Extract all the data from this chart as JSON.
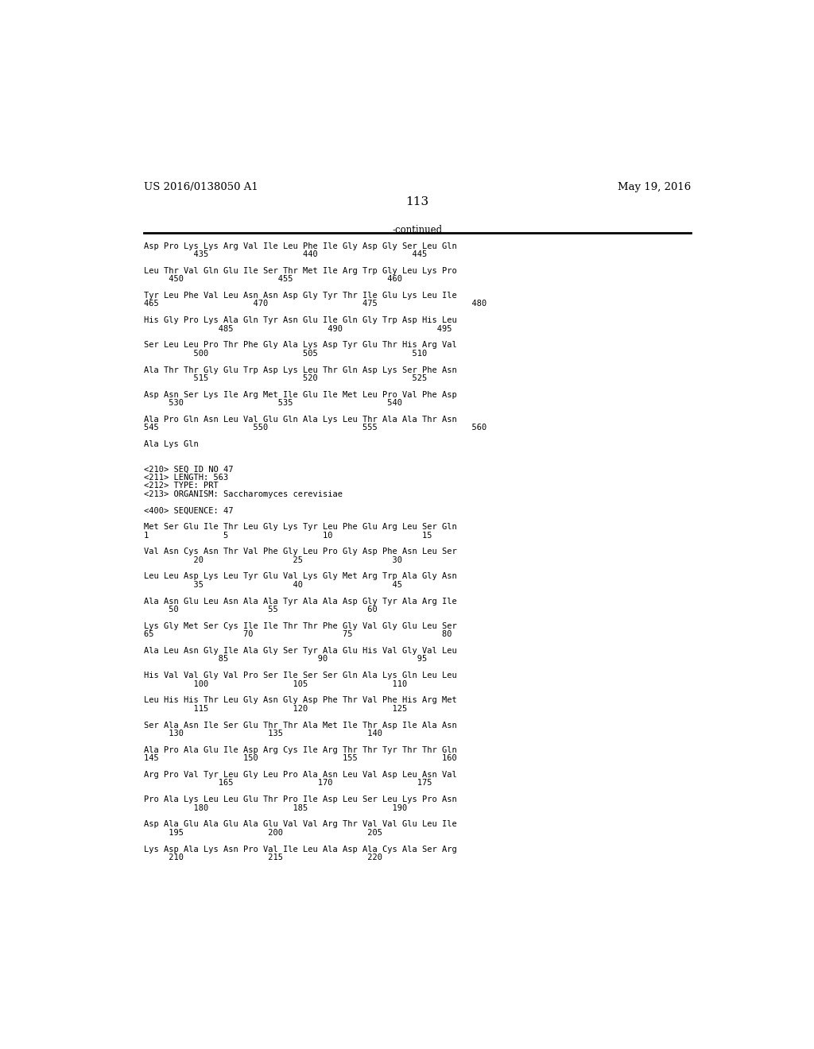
{
  "header_left": "US 2016/0138050 A1",
  "header_right": "May 19, 2016",
  "page_number": "113",
  "continued_label": "-continued",
  "background_color": "#ffffff",
  "text_color": "#000000",
  "font_size": 7.5,
  "lines": [
    "Asp Pro Lys Lys Arg Val Ile Leu Phe Ile Gly Asp Gly Ser Leu Gln",
    "          435                   440                   445",
    "",
    "Leu Thr Val Gln Glu Ile Ser Thr Met Ile Arg Trp Gly Leu Lys Pro",
    "     450                   455                   460",
    "",
    "Tyr Leu Phe Val Leu Asn Asn Asp Gly Tyr Thr Ile Glu Lys Leu Ile",
    "465                   470                   475                   480",
    "",
    "His Gly Pro Lys Ala Gln Tyr Asn Glu Ile Gln Gly Trp Asp His Leu",
    "               485                   490                   495",
    "",
    "Ser Leu Leu Pro Thr Phe Gly Ala Lys Asp Tyr Glu Thr His Arg Val",
    "          500                   505                   510",
    "",
    "Ala Thr Thr Gly Glu Trp Asp Lys Leu Thr Gln Asp Lys Ser Phe Asn",
    "          515                   520                   525",
    "",
    "Asp Asn Ser Lys Ile Arg Met Ile Glu Ile Met Leu Pro Val Phe Asp",
    "     530                   535                   540",
    "",
    "Ala Pro Gln Asn Leu Val Glu Gln Ala Lys Leu Thr Ala Ala Thr Asn",
    "545                   550                   555                   560",
    "",
    "Ala Lys Gln",
    "",
    "",
    "<210> SEQ ID NO 47",
    "<211> LENGTH: 563",
    "<212> TYPE: PRT",
    "<213> ORGANISM: Saccharomyces cerevisiae",
    "",
    "<400> SEQUENCE: 47",
    "",
    "Met Ser Glu Ile Thr Leu Gly Lys Tyr Leu Phe Glu Arg Leu Ser Gln",
    "1               5                   10                  15",
    "",
    "Val Asn Cys Asn Thr Val Phe Gly Leu Pro Gly Asp Phe Asn Leu Ser",
    "          20                  25                  30",
    "",
    "Leu Leu Asp Lys Leu Tyr Glu Val Lys Gly Met Arg Trp Ala Gly Asn",
    "          35                  40                  45",
    "",
    "Ala Asn Glu Leu Asn Ala Ala Tyr Ala Ala Asp Gly Tyr Ala Arg Ile",
    "     50                  55                  60",
    "",
    "Lys Gly Met Ser Cys Ile Ile Thr Thr Phe Gly Val Gly Glu Leu Ser",
    "65                  70                  75                  80",
    "",
    "Ala Leu Asn Gly Ile Ala Gly Ser Tyr Ala Glu His Val Gly Val Leu",
    "               85                  90                  95",
    "",
    "His Val Val Gly Val Pro Ser Ile Ser Ser Gln Ala Lys Gln Leu Leu",
    "          100                 105                 110",
    "",
    "Leu His His Thr Leu Gly Asn Gly Asp Phe Thr Val Phe His Arg Met",
    "          115                 120                 125",
    "",
    "Ser Ala Asn Ile Ser Glu Thr Thr Ala Met Ile Thr Asp Ile Ala Asn",
    "     130                 135                 140",
    "",
    "Ala Pro Ala Glu Ile Asp Arg Cys Ile Arg Thr Thr Tyr Thr Thr Gln",
    "145                 150                 155                 160",
    "",
    "Arg Pro Val Tyr Leu Gly Leu Pro Ala Asn Leu Val Asp Leu Asn Val",
    "               165                 170                 175",
    "",
    "Pro Ala Lys Leu Leu Glu Thr Pro Ile Asp Leu Ser Leu Lys Pro Asn",
    "          180                 185                 190",
    "",
    "Asp Ala Glu Ala Glu Ala Glu Val Val Arg Thr Val Val Glu Leu Ile",
    "     195                 200                 205",
    "",
    "Lys Asp Ala Lys Asn Pro Val Ile Leu Ala Asp Ala Cys Ala Ser Arg",
    "     210                 215                 220"
  ]
}
